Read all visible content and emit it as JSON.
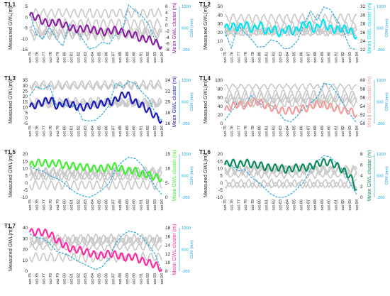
{
  "x_labels": [
    "oct-75",
    "oct-76",
    "oct-77",
    "oct-78",
    "oct-79",
    "oct-80",
    "oct-81",
    "oct-82",
    "oct-83",
    "oct-84",
    "oct-85",
    "oct-86",
    "oct-87",
    "oct-88",
    "oct-89",
    "oct-90",
    "oct-91",
    "oct-92",
    "oct-93",
    "oct-94"
  ],
  "y_label": "Measured GWL(m)",
  "cdm_label": "CDM (mm)",
  "cdm_ticks": [
    "1200",
    "500",
    "-200"
  ],
  "chart_data": [
    {
      "type": "line",
      "title": "T1.1",
      "color": "#8e1fa3",
      "right_label": "Mean GWL cluster (m)",
      "ylim": [
        -15,
        5
      ],
      "y_ticks": [
        "5",
        "0",
        "-5",
        "-10",
        "-15"
      ],
      "r_ticks": [
        "6",
        "4",
        "2",
        "0",
        "-2",
        "-4",
        "-6",
        "-8"
      ],
      "rlim": [
        -8,
        6
      ],
      "series": [
        {
          "values": [
            3,
            2.5,
            1,
            0.5,
            1,
            0,
            -1,
            -1.5,
            -1,
            -1.5,
            -2,
            -2.5,
            -1.5,
            -2,
            -3,
            -3,
            -4.5,
            -4.5,
            -5.5,
            -7
          ]
        }
      ],
      "cdm": [
        1000,
        300,
        150,
        520,
        150,
        -80,
        620,
        420,
        150,
        -180,
        -120,
        50,
        -20,
        280,
        380,
        1250,
        1050,
        900,
        620,
        100,
        -150
      ]
    },
    {
      "type": "line",
      "title": "T1.2",
      "color": "#00e6f0",
      "right_label": "Mean GWL cluster (m)",
      "ylim": [
        0,
        50
      ],
      "y_ticks": [
        "50",
        "40",
        "30",
        "20",
        "10",
        "0"
      ],
      "r_ticks": [
        "32",
        "30",
        "28",
        "26",
        "24",
        "22"
      ],
      "rlim": [
        22,
        32
      ],
      "series": [
        {
          "values": [
            27,
            27.5,
            27,
            28,
            26.5,
            28,
            26,
            27,
            25.5,
            27,
            26,
            27.5,
            28,
            26.5,
            28.5,
            27,
            26.5,
            27,
            26.5,
            25
          ]
        }
      ],
      "cdm": [
        380,
        -150,
        600,
        350,
        150,
        -120,
        -100,
        120,
        60,
        -180,
        -140,
        80,
        620,
        1050,
        750,
        1180,
        1100,
        760,
        380,
        -150,
        -200
      ]
    },
    {
      "type": "line",
      "title": "T1.3",
      "color": "#1b1bb8",
      "right_label": "Mean GWL cluster (m)",
      "ylim": [
        -5,
        35
      ],
      "y_ticks": [
        "35",
        "30",
        "25",
        "20",
        "15",
        "10",
        "5",
        "0",
        "-5"
      ],
      "r_ticks": [
        "24",
        "22",
        "20",
        "18",
        "16"
      ],
      "rlim": [
        16,
        24
      ],
      "series": [
        {
          "values": [
            19,
            19.5,
            20,
            20.5,
            19,
            20,
            19.5,
            19,
            19,
            19.5,
            19.5,
            20,
            20,
            21,
            21.5,
            20,
            19.5,
            18.5,
            17.5,
            16.5
          ]
        }
      ],
      "cdm": [
        700,
        1000,
        900,
        1020,
        400,
        450,
        320,
        400,
        -80,
        -120,
        -90,
        100,
        380,
        1100,
        980,
        1160,
        1100,
        820,
        600,
        160,
        -100
      ]
    },
    {
      "type": "line",
      "title": "T1.4",
      "color": "#f29c9c",
      "right_label": "Mean GWL cluster (m)",
      "ylim": [
        0,
        100
      ],
      "y_ticks": [
        "100",
        "80",
        "60",
        "40",
        "20",
        "0"
      ],
      "r_ticks": [
        "60",
        "58",
        "56",
        "54",
        "52",
        "50"
      ],
      "rlim": [
        50,
        60
      ],
      "series": [
        {
          "values": [
            53,
            54,
            54.5,
            54,
            55,
            55,
            54,
            53.5,
            53,
            53,
            53,
            53.5,
            53.5,
            54.5,
            54.5,
            54,
            53.5,
            53,
            53,
            52
          ]
        }
      ],
      "cdm": [
        -100,
        200,
        480,
        350,
        700,
        500,
        350,
        400,
        220,
        -80,
        -150,
        50,
        300,
        450,
        650,
        1100,
        1050,
        780,
        420,
        100,
        -180
      ]
    },
    {
      "type": "line",
      "title": "T1.5",
      "color": "#40f030",
      "right_label": "Mean GWL cluster (m)",
      "ylim": [
        -10,
        20
      ],
      "y_ticks": [
        "20",
        "15",
        "10",
        "5",
        "0",
        "-5",
        "-10"
      ],
      "r_ticks": [
        "15",
        "10",
        "5",
        "0"
      ],
      "rlim": [
        0,
        15
      ],
      "series": [
        {
          "values": [
            11,
            12,
            12,
            11.5,
            12,
            11,
            11,
            10.5,
            10.5,
            10,
            10,
            10,
            11,
            10,
            9,
            9.5,
            8,
            8,
            7,
            6.5
          ]
        }
      ],
      "cdm": [
        800,
        700,
        650,
        500,
        420,
        300,
        100,
        -50,
        -150,
        -200,
        -100,
        50,
        250,
        700,
        950,
        1100,
        1050,
        850,
        520,
        150,
        -100
      ]
    },
    {
      "type": "line",
      "title": "T1.6",
      "color": "#0a8c5a",
      "right_label": "Mean GWL cluster (m)",
      "ylim": [
        -10,
        20
      ],
      "y_ticks": [
        "20",
        "15",
        "10",
        "5",
        "0",
        "-5",
        "-10"
      ],
      "r_ticks": [
        "8",
        "6",
        "4",
        "2",
        "0"
      ],
      "rlim": [
        0,
        8
      ],
      "series": [
        {
          "values": [
            6,
            6.5,
            6,
            6.5,
            6,
            6,
            5.5,
            5.5,
            5.5,
            5,
            5.5,
            5.5,
            5.5,
            6,
            6.5,
            6.5,
            6,
            5,
            4,
            1.5
          ]
        }
      ],
      "cdm": [
        900,
        850,
        650,
        700,
        450,
        300,
        100,
        -100,
        -200,
        -200,
        -100,
        80,
        300,
        700,
        950,
        1150,
        1100,
        900,
        650,
        250,
        -100
      ]
    },
    {
      "type": "line",
      "title": "T1.7",
      "color": "#ff2aa8",
      "right_label": "Mean GWL cluster (m)",
      "ylim": [
        0,
        40
      ],
      "y_ticks": [
        "40",
        "30",
        "20",
        "10",
        "0"
      ],
      "r_ticks": [
        "18",
        "16",
        "14",
        "12",
        "10",
        "8"
      ],
      "rlim": [
        8,
        18
      ],
      "series": [
        {
          "values": [
            17,
            17,
            17,
            16.5,
            15,
            14,
            13,
            13,
            12.5,
            12,
            11.5,
            12,
            12,
            11.5,
            11,
            11.5,
            10.5,
            10,
            9.5,
            8.5
          ]
        }
      ],
      "cdm": [
        1000,
        900,
        850,
        700,
        450,
        380,
        300,
        150,
        50,
        -50,
        -150,
        -50,
        200,
        700,
        950,
        1100,
        1050,
        900,
        650,
        350,
        -200
      ]
    }
  ]
}
